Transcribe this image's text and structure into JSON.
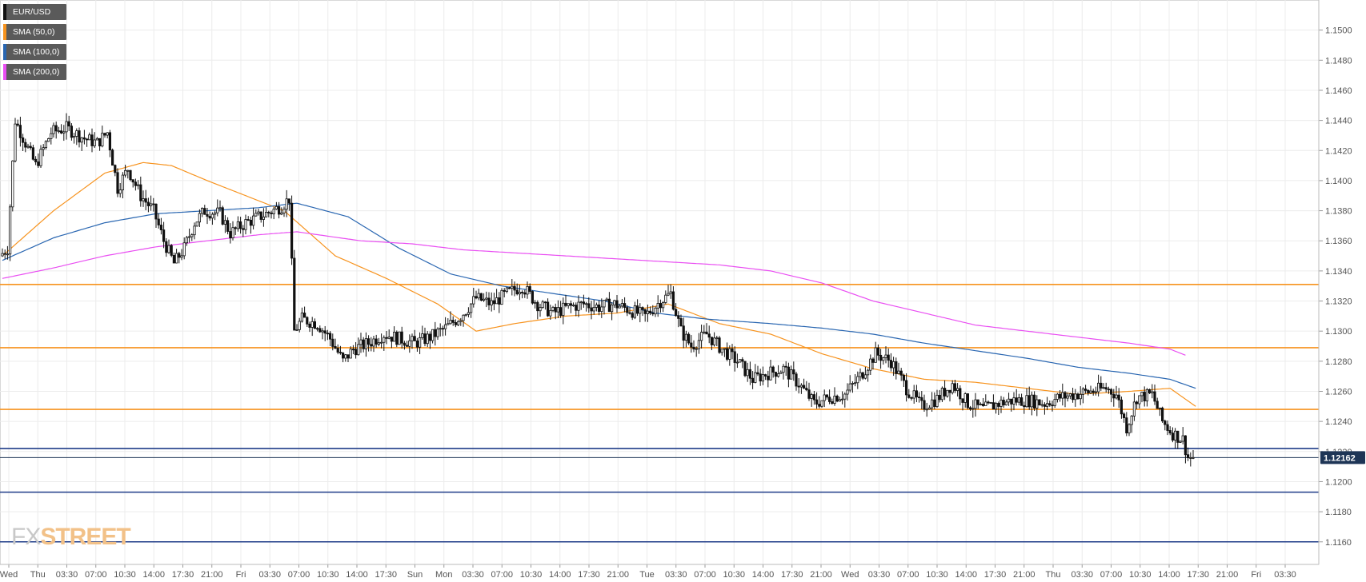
{
  "symbol": "EUR/USD",
  "legend": [
    {
      "label": "EUR/USD",
      "color": "#111111"
    },
    {
      "label": "SMA (50,0)",
      "color": "#f7931e"
    },
    {
      "label": "SMA (100,0)",
      "color": "#2966b1"
    },
    {
      "label": "SMA (200,0)",
      "color": "#e94ef2"
    }
  ],
  "logo": {
    "part1": "FX",
    "part2": "STREET"
  },
  "current_price_label": "1.12162",
  "colors": {
    "bull": "#ffffff",
    "bear": "#111111",
    "wick": "#111111",
    "sma50": "#f7931e",
    "sma100": "#2966b1",
    "sma200": "#e94ef2",
    "resistance": "#f7931e",
    "support": "#1f3c88",
    "current": "#1e3556",
    "grid": "#ececec"
  },
  "chart_data": {
    "type": "candlestick",
    "title": "",
    "ylim": [
      1.1145,
      1.152
    ],
    "y_ticks": [
      "1.1500",
      "1.1480",
      "1.1460",
      "1.1440",
      "1.1420",
      "1.1400",
      "1.1380",
      "1.1360",
      "1.1340",
      "1.1320",
      "1.1300",
      "1.1280",
      "1.1260",
      "1.1240",
      "1.1220",
      "1.1200",
      "1.1180",
      "1.1160"
    ],
    "x_ticks": [
      "Wed",
      "Thu",
      "03:30",
      "07:00",
      "10:30",
      "14:00",
      "17:30",
      "21:00",
      "Fri",
      "03:30",
      "07:00",
      "10:30",
      "14:00",
      "17:30",
      "Sun",
      "Mon",
      "03:30",
      "07:00",
      "10:30",
      "14:00",
      "17:30",
      "21:00",
      "Tue",
      "03:30",
      "07:00",
      "10:30",
      "14:00",
      "17:30",
      "21:00",
      "Wed",
      "03:30",
      "07:00",
      "10:30",
      "14:00",
      "17:30",
      "21:00",
      "Thu",
      "03:30",
      "07:00",
      "10:30",
      "14:00",
      "17:30",
      "21:00",
      "Fri",
      "03:30"
    ],
    "price_path": [
      [
        0,
        1.135
      ],
      [
        3,
        1.1355
      ],
      [
        6,
        1.144
      ],
      [
        10,
        1.1425
      ],
      [
        14,
        1.141
      ],
      [
        20,
        1.1432
      ],
      [
        26,
        1.1435
      ],
      [
        33,
        1.1428
      ],
      [
        38,
        1.1425
      ],
      [
        42,
        1.1432
      ],
      [
        46,
        1.1395
      ],
      [
        50,
        1.1408
      ],
      [
        55,
        1.139
      ],
      [
        60,
        1.138
      ],
      [
        64,
        1.136
      ],
      [
        68,
        1.1345
      ],
      [
        72,
        1.1355
      ],
      [
        76,
        1.1372
      ],
      [
        80,
        1.138
      ],
      [
        86,
        1.1378
      ],
      [
        90,
        1.1365
      ],
      [
        96,
        1.1372
      ],
      [
        104,
        1.1378
      ],
      [
        110,
        1.1383
      ],
      [
        113,
        1.1388
      ],
      [
        115,
        1.13
      ],
      [
        118,
        1.1308
      ],
      [
        124,
        1.1305
      ],
      [
        129,
        1.1295
      ],
      [
        134,
        1.128
      ],
      [
        138,
        1.1288
      ],
      [
        144,
        1.1292
      ],
      [
        150,
        1.1298
      ],
      [
        156,
        1.1295
      ],
      [
        162,
        1.1292
      ],
      [
        168,
        1.1296
      ],
      [
        174,
        1.1302
      ],
      [
        180,
        1.131
      ],
      [
        186,
        1.1322
      ],
      [
        192,
        1.1318
      ],
      [
        198,
        1.1325
      ],
      [
        204,
        1.133
      ],
      [
        210,
        1.1318
      ],
      [
        216,
        1.1312
      ],
      [
        222,
        1.1316
      ],
      [
        228,
        1.1318
      ],
      [
        234,
        1.1316
      ],
      [
        240,
        1.1318
      ],
      [
        246,
        1.1314
      ],
      [
        252,
        1.131
      ],
      [
        258,
        1.132
      ],
      [
        262,
        1.1325
      ],
      [
        266,
        1.13
      ],
      [
        270,
        1.129
      ],
      [
        276,
        1.1298
      ],
      [
        282,
        1.1288
      ],
      [
        288,
        1.128
      ],
      [
        294,
        1.1268
      ],
      [
        300,
        1.1272
      ],
      [
        306,
        1.1275
      ],
      [
        312,
        1.1265
      ],
      [
        318,
        1.1252
      ],
      [
        324,
        1.1256
      ],
      [
        330,
        1.1258
      ],
      [
        336,
        1.127
      ],
      [
        342,
        1.1285
      ],
      [
        348,
        1.128
      ],
      [
        354,
        1.1262
      ],
      [
        360,
        1.125
      ],
      [
        366,
        1.1255
      ],
      [
        372,
        1.1265
      ],
      [
        378,
        1.1252
      ],
      [
        384,
        1.1248
      ],
      [
        390,
        1.1252
      ],
      [
        396,
        1.1254
      ],
      [
        402,
        1.1254
      ],
      [
        408,
        1.1252
      ],
      [
        414,
        1.1256
      ],
      [
        420,
        1.1258
      ],
      [
        426,
        1.126
      ],
      [
        432,
        1.1262
      ],
      [
        436,
        1.1258
      ],
      [
        440,
        1.1236
      ],
      [
        444,
        1.1256
      ],
      [
        450,
        1.1258
      ],
      [
        454,
        1.124
      ],
      [
        458,
        1.1232
      ],
      [
        462,
        1.1228
      ],
      [
        464,
        1.1216
      ]
    ],
    "series": [
      {
        "name": "SMA (50,0)",
        "color": "#f7931e",
        "points": [
          [
            0,
            1.135
          ],
          [
            20,
            1.138
          ],
          [
            40,
            1.1405
          ],
          [
            55,
            1.1412
          ],
          [
            66,
            1.141
          ],
          [
            80,
            1.14
          ],
          [
            95,
            1.139
          ],
          [
            110,
            1.138
          ],
          [
            130,
            1.135
          ],
          [
            150,
            1.1335
          ],
          [
            170,
            1.1318
          ],
          [
            185,
            1.13
          ],
          [
            200,
            1.1305
          ],
          [
            220,
            1.131
          ],
          [
            240,
            1.1312
          ],
          [
            260,
            1.1318
          ],
          [
            280,
            1.1305
          ],
          [
            300,
            1.1298
          ],
          [
            320,
            1.1285
          ],
          [
            340,
            1.1275
          ],
          [
            360,
            1.1268
          ],
          [
            380,
            1.1266
          ],
          [
            400,
            1.1262
          ],
          [
            420,
            1.1258
          ],
          [
            440,
            1.126
          ],
          [
            456,
            1.1262
          ],
          [
            466,
            1.125
          ]
        ]
      },
      {
        "name": "SMA (100,0)",
        "color": "#2966b1",
        "points": [
          [
            0,
            1.1347
          ],
          [
            20,
            1.1362
          ],
          [
            40,
            1.1372
          ],
          [
            60,
            1.1378
          ],
          [
            80,
            1.138
          ],
          [
            100,
            1.1382
          ],
          [
            115,
            1.1385
          ],
          [
            135,
            1.1376
          ],
          [
            155,
            1.1355
          ],
          [
            175,
            1.1338
          ],
          [
            195,
            1.133
          ],
          [
            215,
            1.1325
          ],
          [
            235,
            1.132
          ],
          [
            255,
            1.1312
          ],
          [
            275,
            1.1308
          ],
          [
            300,
            1.1305
          ],
          [
            320,
            1.1302
          ],
          [
            340,
            1.1298
          ],
          [
            360,
            1.1292
          ],
          [
            380,
            1.1287
          ],
          [
            400,
            1.1282
          ],
          [
            420,
            1.1276
          ],
          [
            440,
            1.1272
          ],
          [
            456,
            1.1268
          ],
          [
            466,
            1.1262
          ]
        ]
      },
      {
        "name": "SMA (200,0)",
        "color": "#e94ef2",
        "points": [
          [
            0,
            1.1335
          ],
          [
            20,
            1.1342
          ],
          [
            40,
            1.135
          ],
          [
            60,
            1.1356
          ],
          [
            80,
            1.136
          ],
          [
            100,
            1.1364
          ],
          [
            115,
            1.1366
          ],
          [
            140,
            1.136
          ],
          [
            160,
            1.1358
          ],
          [
            180,
            1.1354
          ],
          [
            200,
            1.1352
          ],
          [
            220,
            1.135
          ],
          [
            240,
            1.1348
          ],
          [
            260,
            1.1346
          ],
          [
            280,
            1.1344
          ],
          [
            300,
            1.134
          ],
          [
            320,
            1.1332
          ],
          [
            340,
            1.132
          ],
          [
            360,
            1.1312
          ],
          [
            380,
            1.1304
          ],
          [
            400,
            1.13
          ],
          [
            420,
            1.1296
          ],
          [
            440,
            1.1292
          ],
          [
            456,
            1.1288
          ],
          [
            462,
            1.1284
          ]
        ]
      }
    ],
    "horizontal_levels": [
      {
        "value": 1.1331,
        "type": "resistance"
      },
      {
        "value": 1.1289,
        "type": "resistance"
      },
      {
        "value": 1.1248,
        "type": "resistance"
      },
      {
        "value": 1.1222,
        "type": "support"
      },
      {
        "value": 1.1193,
        "type": "support"
      },
      {
        "value": 1.116,
        "type": "support"
      }
    ],
    "current_price": 1.1216,
    "grid": true
  }
}
